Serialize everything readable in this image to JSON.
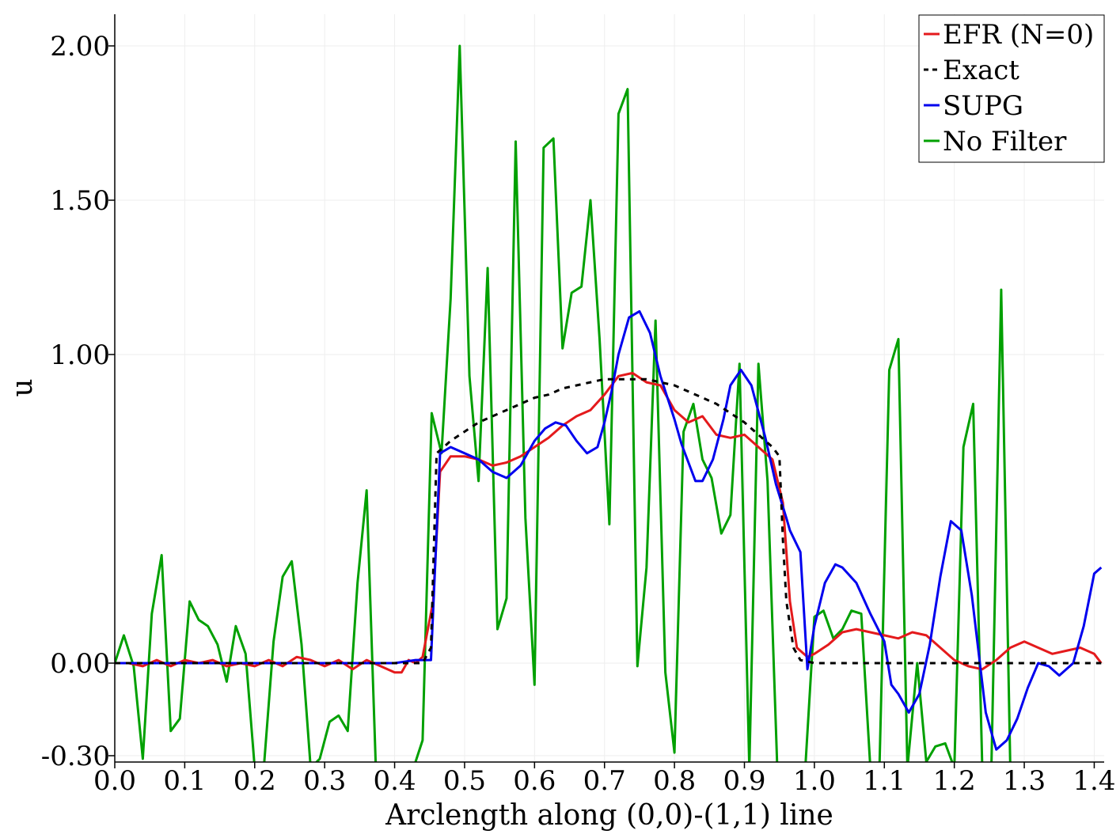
{
  "chart_data": {
    "type": "line",
    "xlabel": "Arclength along (0,0)-(1,1) line",
    "ylabel": "u",
    "xlim": [
      0.0,
      1.4142
    ],
    "ylim": [
      -0.31,
      2.1
    ],
    "xticks": [
      0.0,
      0.1,
      0.2,
      0.3,
      0.4,
      0.5,
      0.6,
      0.7,
      0.8,
      0.9,
      1.0,
      1.1,
      1.2,
      1.3,
      1.4
    ],
    "xtick_labels": [
      "0.0",
      "0.1",
      "0.2",
      "0.3",
      "0.4",
      "0.5",
      "0.6",
      "0.7",
      "0.8",
      "0.9",
      "1.0",
      "1.1",
      "1.2",
      "1.3",
      "1.4"
    ],
    "yticks": [
      -0.3,
      0.0,
      1.0,
      1.5,
      2.0
    ],
    "ytick_labels": [
      "-0.30",
      "0.00",
      "1.00",
      "1.50",
      "2.00"
    ],
    "grid": true,
    "legend_position": "top-right",
    "series": [
      {
        "name": "EFR (N=0)",
        "color": "#e41a1c",
        "dash": "solid",
        "x": [
          0.0,
          0.02,
          0.04,
          0.06,
          0.08,
          0.1,
          0.12,
          0.14,
          0.16,
          0.18,
          0.2,
          0.22,
          0.24,
          0.26,
          0.28,
          0.3,
          0.32,
          0.34,
          0.36,
          0.38,
          0.4,
          0.41,
          0.42,
          0.43,
          0.44,
          0.455,
          0.465,
          0.48,
          0.5,
          0.52,
          0.54,
          0.56,
          0.58,
          0.6,
          0.62,
          0.64,
          0.66,
          0.68,
          0.7,
          0.72,
          0.74,
          0.76,
          0.78,
          0.8,
          0.82,
          0.84,
          0.86,
          0.88,
          0.9,
          0.92,
          0.94,
          0.955,
          0.965,
          0.975,
          0.99,
          1.0,
          1.02,
          1.04,
          1.06,
          1.08,
          1.1,
          1.12,
          1.14,
          1.16,
          1.18,
          1.2,
          1.22,
          1.24,
          1.26,
          1.28,
          1.3,
          1.32,
          1.34,
          1.36,
          1.38,
          1.4,
          1.41
        ],
        "y": [
          0.0,
          0.0,
          -0.01,
          0.01,
          -0.01,
          0.01,
          0.0,
          0.01,
          -0.01,
          0.0,
          -0.01,
          0.01,
          -0.01,
          0.02,
          0.01,
          -0.01,
          0.01,
          -0.02,
          0.01,
          -0.01,
          -0.03,
          -0.03,
          0.01,
          0.0,
          0.02,
          0.2,
          0.62,
          0.67,
          0.67,
          0.66,
          0.64,
          0.65,
          0.67,
          0.7,
          0.73,
          0.77,
          0.8,
          0.82,
          0.87,
          0.93,
          0.94,
          0.91,
          0.9,
          0.82,
          0.78,
          0.8,
          0.74,
          0.73,
          0.74,
          0.7,
          0.66,
          0.52,
          0.2,
          0.05,
          0.02,
          0.03,
          0.06,
          0.1,
          0.11,
          0.1,
          0.09,
          0.08,
          0.1,
          0.09,
          0.05,
          0.01,
          -0.01,
          -0.02,
          0.01,
          0.05,
          0.07,
          0.05,
          0.03,
          0.04,
          0.05,
          0.03,
          0.0
        ]
      },
      {
        "name": "Exact",
        "color": "#000000",
        "dash": "dashed",
        "x": [
          0.0,
          0.44,
          0.452,
          0.46,
          0.48,
          0.5,
          0.52,
          0.54,
          0.56,
          0.58,
          0.6,
          0.62,
          0.64,
          0.66,
          0.68,
          0.7,
          0.72,
          0.74,
          0.76,
          0.78,
          0.8,
          0.82,
          0.84,
          0.86,
          0.88,
          0.9,
          0.92,
          0.94,
          0.95,
          0.955,
          0.96,
          0.97,
          0.98,
          1.0,
          1.41
        ],
        "y": [
          0.0,
          0.0,
          0.05,
          0.68,
          0.72,
          0.75,
          0.78,
          0.8,
          0.82,
          0.84,
          0.86,
          0.87,
          0.89,
          0.9,
          0.91,
          0.92,
          0.92,
          0.92,
          0.92,
          0.91,
          0.9,
          0.88,
          0.86,
          0.84,
          0.81,
          0.78,
          0.74,
          0.7,
          0.67,
          0.4,
          0.2,
          0.05,
          0.01,
          0.0,
          0.0
        ]
      },
      {
        "name": "SUPG",
        "color": "#0000ee",
        "dash": "solid",
        "x": [
          0.0,
          0.05,
          0.1,
          0.15,
          0.2,
          0.25,
          0.3,
          0.35,
          0.4,
          0.43,
          0.452,
          0.465,
          0.48,
          0.5,
          0.52,
          0.54,
          0.56,
          0.58,
          0.6,
          0.615,
          0.63,
          0.645,
          0.66,
          0.675,
          0.69,
          0.7,
          0.71,
          0.72,
          0.735,
          0.75,
          0.765,
          0.78,
          0.8,
          0.81,
          0.83,
          0.84,
          0.855,
          0.87,
          0.88,
          0.895,
          0.91,
          0.93,
          0.945,
          0.96,
          0.965,
          0.98,
          0.99,
          1.0,
          1.015,
          1.03,
          1.04,
          1.06,
          1.08,
          1.1,
          1.11,
          1.12,
          1.135,
          1.15,
          1.165,
          1.18,
          1.195,
          1.21,
          1.225,
          1.245,
          1.26,
          1.275,
          1.29,
          1.305,
          1.32,
          1.335,
          1.35,
          1.37,
          1.385,
          1.4,
          1.41
        ],
        "y": [
          0.0,
          0.0,
          0.0,
          0.0,
          0.0,
          0.0,
          0.0,
          0.0,
          0.0,
          0.01,
          0.01,
          0.68,
          0.7,
          0.68,
          0.66,
          0.62,
          0.6,
          0.64,
          0.72,
          0.76,
          0.78,
          0.77,
          0.72,
          0.68,
          0.7,
          0.78,
          0.88,
          1.0,
          1.12,
          1.14,
          1.07,
          0.93,
          0.79,
          0.71,
          0.59,
          0.59,
          0.66,
          0.79,
          0.9,
          0.95,
          0.9,
          0.73,
          0.58,
          0.47,
          0.43,
          0.36,
          -0.02,
          0.12,
          0.26,
          0.32,
          0.31,
          0.26,
          0.16,
          0.07,
          -0.07,
          -0.1,
          -0.16,
          -0.1,
          0.06,
          0.28,
          0.46,
          0.43,
          0.22,
          -0.16,
          -0.28,
          -0.25,
          -0.18,
          -0.08,
          0.0,
          -0.01,
          -0.04,
          0.0,
          0.12,
          0.29,
          0.31
        ]
      },
      {
        "name": "No Filter",
        "color": "#00a000",
        "dash": "solid",
        "x": [
          0.0,
          0.013,
          0.027,
          0.04,
          0.053,
          0.067,
          0.08,
          0.093,
          0.107,
          0.12,
          0.133,
          0.147,
          0.16,
          0.173,
          0.187,
          0.2,
          0.213,
          0.227,
          0.24,
          0.253,
          0.267,
          0.28,
          0.293,
          0.307,
          0.32,
          0.333,
          0.347,
          0.36,
          0.373,
          0.387,
          0.4,
          0.413,
          0.427,
          0.44,
          0.453,
          0.467,
          0.48,
          0.493,
          0.507,
          0.52,
          0.533,
          0.547,
          0.56,
          0.573,
          0.587,
          0.6,
          0.613,
          0.627,
          0.64,
          0.653,
          0.667,
          0.68,
          0.693,
          0.707,
          0.72,
          0.733,
          0.747,
          0.76,
          0.773,
          0.787,
          0.8,
          0.813,
          0.827,
          0.84,
          0.853,
          0.867,
          0.88,
          0.893,
          0.907,
          0.92,
          0.933,
          0.947,
          0.96,
          0.973,
          0.987,
          1.0,
          1.013,
          1.027,
          1.04,
          1.053,
          1.067,
          1.08,
          1.093,
          1.107,
          1.12,
          1.133,
          1.147,
          1.16,
          1.173,
          1.187,
          1.2,
          1.213,
          1.227,
          1.24,
          1.253,
          1.267,
          1.28,
          1.293,
          1.307,
          1.32,
          1.333,
          1.347,
          1.36,
          1.373,
          1.387,
          1.4,
          1.41
        ],
        "y": [
          0.0,
          0.09,
          -0.01,
          -0.31,
          0.16,
          0.35,
          -0.22,
          -0.18,
          0.2,
          0.14,
          0.12,
          0.06,
          -0.06,
          0.12,
          0.03,
          -0.34,
          -0.34,
          0.07,
          0.28,
          0.33,
          0.06,
          -0.34,
          -0.31,
          -0.19,
          -0.17,
          -0.22,
          0.26,
          0.56,
          -0.33,
          -0.34,
          -0.34,
          -0.34,
          -0.34,
          -0.25,
          0.81,
          0.68,
          1.18,
          2.0,
          0.93,
          0.59,
          1.28,
          0.11,
          0.21,
          1.69,
          0.47,
          -0.07,
          1.67,
          1.7,
          1.02,
          1.2,
          1.22,
          1.5,
          1.05,
          0.45,
          1.78,
          1.86,
          -0.01,
          0.31,
          1.11,
          -0.03,
          -0.29,
          0.75,
          0.84,
          0.66,
          0.6,
          0.42,
          0.48,
          0.97,
          -0.34,
          0.97,
          0.59,
          -0.34,
          -0.34,
          -0.34,
          -0.34,
          0.15,
          0.17,
          0.08,
          0.11,
          0.17,
          0.16,
          -0.34,
          -0.34,
          0.95,
          1.05,
          -0.34,
          0.0,
          -0.32,
          -0.27,
          -0.26,
          -0.34,
          0.7,
          0.84,
          -0.34,
          -0.34,
          1.21,
          -0.34,
          -0.34,
          -0.34,
          -0.34,
          -0.34,
          -0.34,
          -0.34,
          -0.34,
          -0.34,
          -0.34,
          -0.34
        ]
      }
    ]
  }
}
